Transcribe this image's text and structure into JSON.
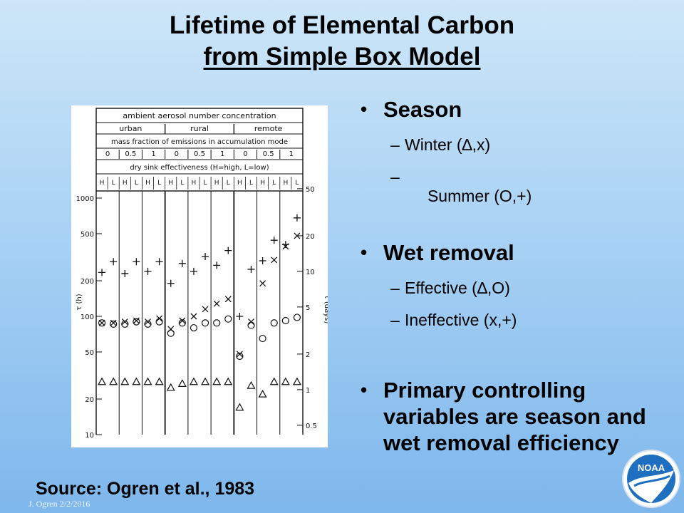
{
  "title": {
    "line1": "Lifetime of Elemental Carbon",
    "line2": "from Simple Box Model"
  },
  "figure": {
    "header_row1": "ambient aerosol number concentration",
    "regions": [
      "urban",
      "rural",
      "remote"
    ],
    "header_row3": "mass fraction of emissions in accumulation mode",
    "fractions": [
      "0",
      "0.5",
      "1",
      "0",
      "0.5",
      "1",
      "0",
      "0.5",
      "1"
    ],
    "header_row5": "dry sink effectiveness (H=high, L=low)",
    "hl": [
      "H",
      "L",
      "H",
      "L",
      "H",
      "L",
      "H",
      "L",
      "H",
      "L",
      "H",
      "L",
      "H",
      "L",
      "H",
      "L",
      "H",
      "L"
    ],
    "left_ticks": [
      "1000",
      "500",
      "200",
      "100",
      "50",
      "20",
      "10"
    ],
    "left_axis_label": "τ (h)",
    "right_ticks": [
      "50",
      "20",
      "10",
      "5",
      "2",
      "1",
      "0.5"
    ],
    "right_axis_label": "τ (days)"
  },
  "chart_data": {
    "type": "scatter",
    "ylabel": "τ (h)",
    "y2label": "τ (days)",
    "yscale": "log",
    "ylim": [
      10,
      1000
    ],
    "column_count": 18,
    "series": [
      {
        "name": "Winter, effective (Δ)",
        "symbol": "triangle",
        "values": [
          28,
          28,
          28,
          28,
          28,
          28,
          25,
          27,
          28,
          28,
          28,
          28,
          17,
          26,
          22,
          28,
          28,
          28
        ]
      },
      {
        "name": "Summer, effective (O)",
        "symbol": "circle",
        "values": [
          88,
          86,
          86,
          90,
          86,
          90,
          72,
          88,
          80,
          88,
          88,
          95,
          46,
          84,
          65,
          88,
          92,
          98
        ]
      },
      {
        "name": "Winter, ineffective (x)",
        "symbol": "x",
        "values": [
          88,
          88,
          90,
          92,
          90,
          96,
          78,
          92,
          100,
          115,
          128,
          140,
          48,
          90,
          190,
          300,
          390,
          480
        ]
      },
      {
        "name": "Summer, ineffective (+)",
        "symbol": "plus",
        "values": [
          235,
          290,
          230,
          290,
          240,
          290,
          190,
          280,
          240,
          320,
          270,
          360,
          100,
          250,
          295,
          440,
          405,
          680
        ]
      }
    ]
  },
  "bullets": [
    {
      "text": "Season",
      "subs": [
        "Winter (∆,x)",
        " Summer (O,+)"
      ]
    },
    {
      "text": "Wet removal",
      "subs": [
        "Effective (∆,O)",
        "Ineffective (x,+)"
      ]
    },
    {
      "text": "Primary controlling variables are season and wet removal efficiency",
      "subs": []
    }
  ],
  "source": "Source:  Ogren et al., 1983",
  "footer": "J. Ogren  2/2/2016",
  "logo": {
    "text": "NOAA",
    "icon": "noaa-logo-icon"
  }
}
